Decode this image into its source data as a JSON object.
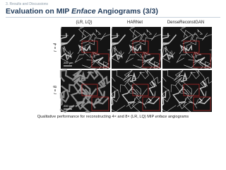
{
  "header": {
    "section": "3. Results and Discussions",
    "title": {
      "before": "Evaluation on MIP ",
      "italic": "Enface",
      "after": " Angiograms (3/3)"
    }
  },
  "columns": [
    "(LR, LQ)",
    "HARNet",
    "DenseReconstGAN"
  ],
  "rows": [
    "r = 4",
    "r = 8"
  ],
  "scale_bar": "200 µm",
  "caption": {
    "before": "Qualitative performance for reconstructing 4× and 8× (LR, LQ) MIP ",
    "italic": "enface",
    "after": " angiograms"
  }
}
